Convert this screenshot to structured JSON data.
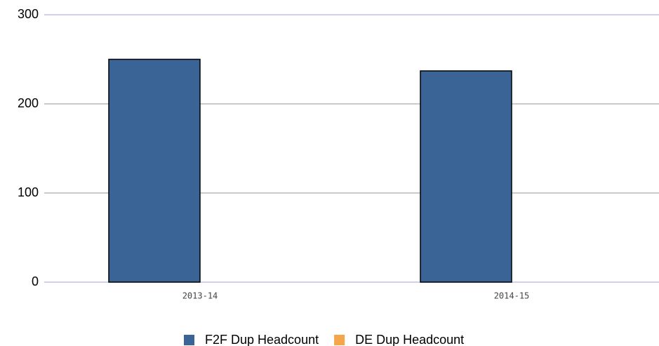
{
  "chart_data": {
    "type": "bar",
    "categories": [
      "2013-14",
      "2014-15"
    ],
    "series": [
      {
        "name": "F2F Dup Headcount",
        "color": "#3a6496",
        "values": [
          250,
          237
        ]
      },
      {
        "name": "DE Dup Headcount",
        "color": "#f5a54a",
        "values": [
          0,
          0
        ]
      }
    ],
    "ylim": [
      0,
      300
    ],
    "yticks": [
      0,
      100,
      200,
      300
    ],
    "grid": true,
    "legend": "bottom"
  }
}
